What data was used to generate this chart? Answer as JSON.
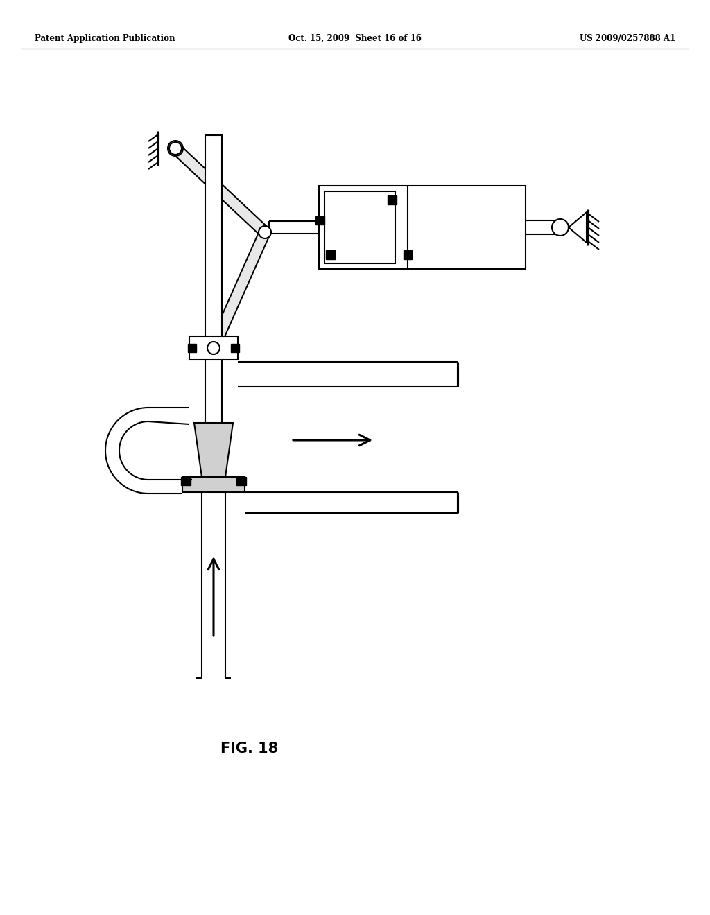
{
  "header_left": "Patent Application Publication",
  "header_center": "Oct. 15, 2009  Sheet 16 of 16",
  "header_right": "US 2009/0257888 A1",
  "bg_color": "#ffffff",
  "line_color": "#000000",
  "fig_label": "FIG. 18",
  "lw": 1.5
}
